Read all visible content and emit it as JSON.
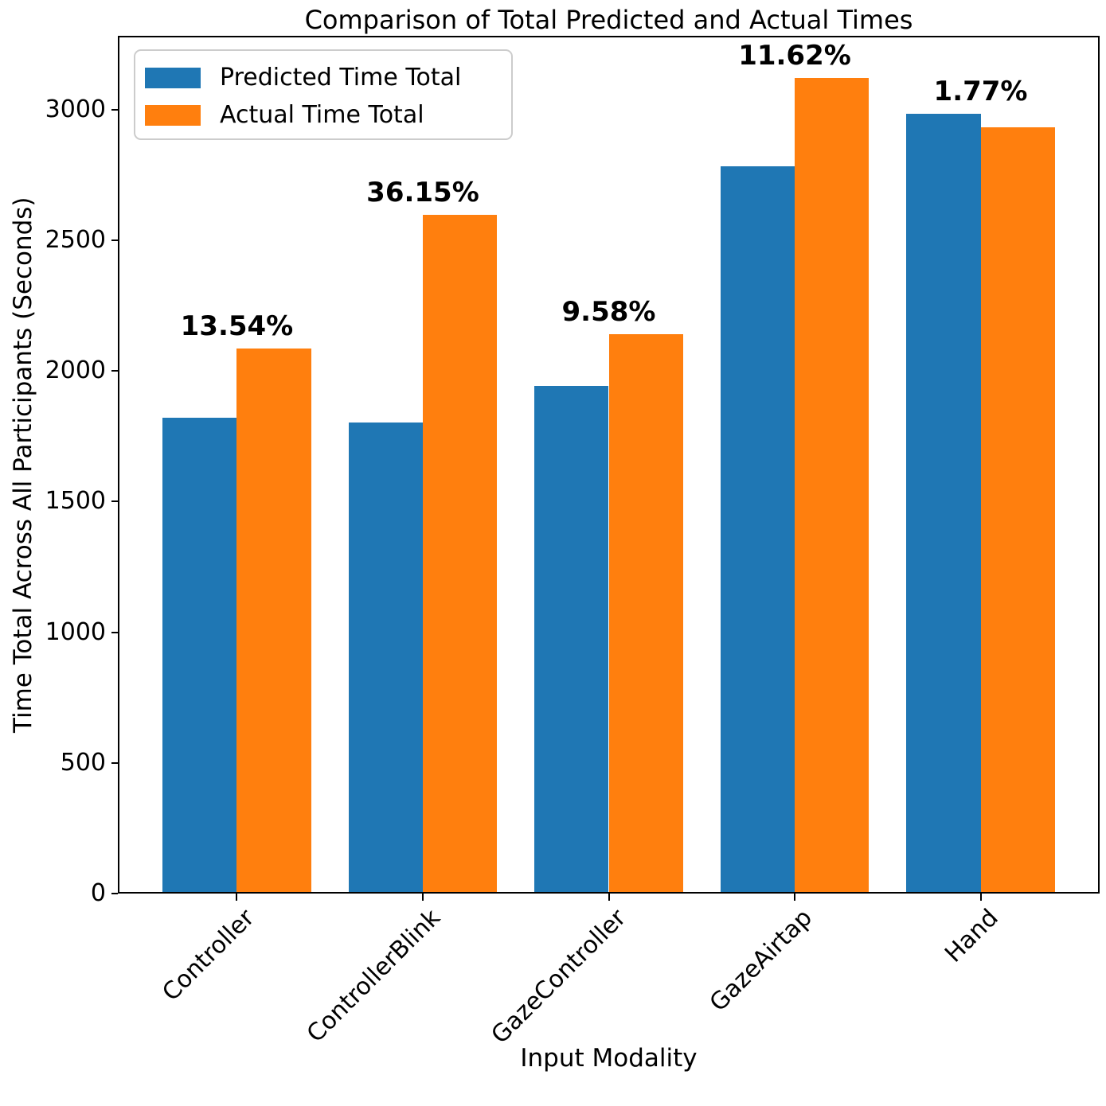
{
  "chart_data": {
    "type": "bar",
    "title": "Comparison of Total Predicted and Actual Times",
    "xlabel": "Input Modality",
    "ylabel": "Time Total Across All Participants (Seconds)",
    "categories": [
      "Controller",
      "ControllerBlink",
      "GazeController",
      "GazeAirtap",
      "Hand"
    ],
    "series": [
      {
        "name": "Predicted Time Total",
        "color": "#1f77b4",
        "values": [
          1822,
          1804,
          1944,
          2783,
          2986
        ]
      },
      {
        "name": "Actual Time Total",
        "color": "#ff7f0e",
        "values": [
          2086,
          2598,
          2142,
          3122,
          2933
        ]
      }
    ],
    "bar_labels": [
      "13.54%",
      "36.15%",
      "9.58%",
      "11.62%",
      "1.77%"
    ],
    "yticks": [
      0,
      500,
      1000,
      1500,
      2000,
      2500,
      3000
    ],
    "ylim": [
      0,
      3283
    ],
    "bar_width_units": 0.4,
    "x_margin_units": 0.64,
    "legend_position": "upper left",
    "grid": false,
    "background_color": "#ffffff",
    "text_color": "#000000"
  }
}
